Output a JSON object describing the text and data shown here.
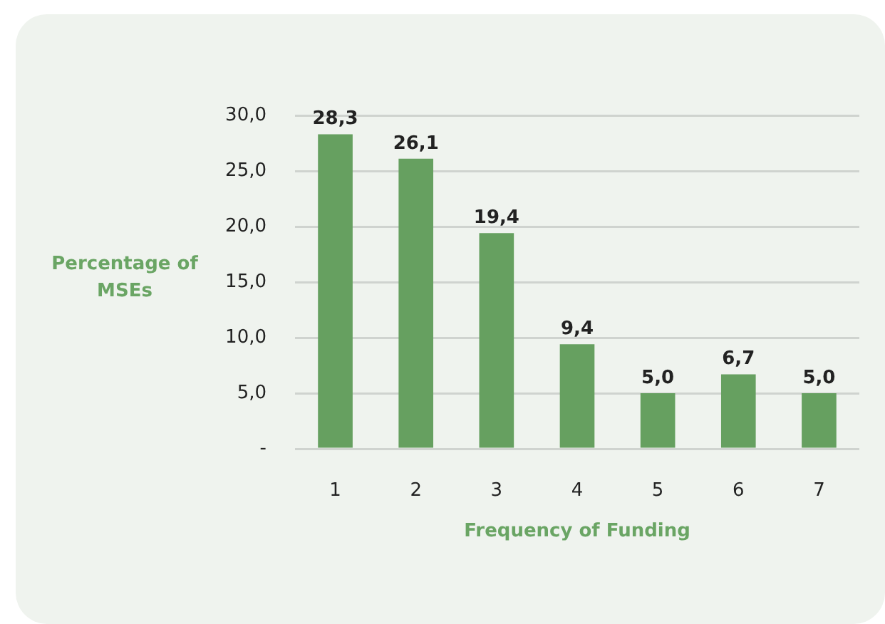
{
  "chart_data": {
    "type": "bar",
    "xlabel": "Frequency of Funding",
    "ylabel": "Percentage of MSEs",
    "categories": [
      "1",
      "2",
      "3",
      "4",
      "5",
      "6",
      "7"
    ],
    "values": [
      28.3,
      26.1,
      19.4,
      9.4,
      5.0,
      6.7,
      5.0
    ],
    "value_labels": [
      "28,3",
      "26,1",
      "19,4",
      "9,4",
      "5,0",
      "6,7",
      "5,0"
    ],
    "color": "#66a060",
    "ylim": [
      0,
      30
    ],
    "yticks": [
      {
        "value": 0,
        "label": "-"
      },
      {
        "value": 5,
        "label": "5,0"
      },
      {
        "value": 10,
        "label": "10,0"
      },
      {
        "value": 15,
        "label": "15,0"
      },
      {
        "value": 20,
        "label": "20,0"
      },
      {
        "value": 25,
        "label": "25,0"
      },
      {
        "value": 30,
        "label": "30,0"
      }
    ],
    "grid": "y",
    "legend": false
  }
}
